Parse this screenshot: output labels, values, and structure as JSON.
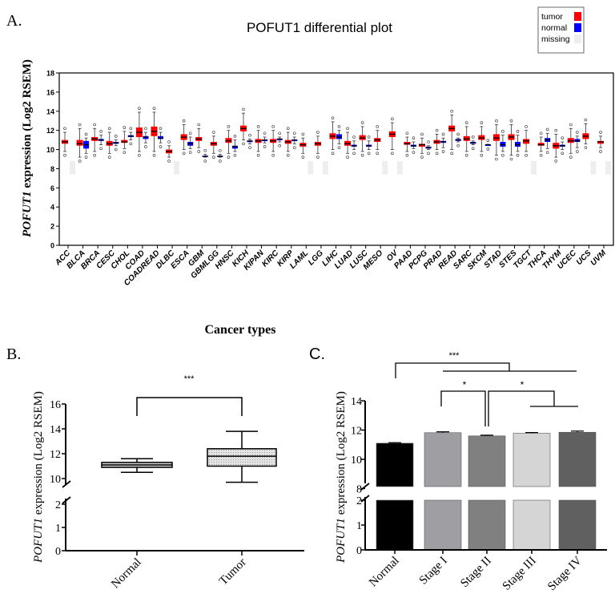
{
  "panel_labels": {
    "a": "A.",
    "b": "B.",
    "c": "C."
  },
  "chart_data": [
    {
      "type": "box",
      "panel": "A",
      "title": "POFUT1 differential plot",
      "xlabel": "Cancer types",
      "ylabel_gene": "POFUT1",
      "ylabel_rest": " expression (Log2 RSEM)",
      "ylim": [
        0,
        18
      ],
      "yticks": [
        0,
        2,
        4,
        6,
        8,
        10,
        12,
        14,
        16,
        18
      ],
      "legend": {
        "position": "top-right",
        "entries": [
          {
            "name": "tumor",
            "color": "#ff0000"
          },
          {
            "name": "normal",
            "color": "#0000ff"
          },
          {
            "name": "missing",
            "color": "#eeeeee"
          }
        ]
      },
      "box_format": [
        "min",
        "q1",
        "median",
        "q3",
        "max"
      ],
      "categories": [
        {
          "name": "ACC",
          "tumor": [
            9.8,
            10.6,
            10.8,
            11.0,
            11.8
          ],
          "normal": null
        },
        {
          "name": "BLCA",
          "tumor": [
            9.2,
            10.4,
            10.6,
            11.0,
            12.2
          ],
          "normal": [
            9.6,
            10.1,
            10.5,
            10.9,
            11.2
          ]
        },
        {
          "name": "BRCA",
          "tumor": [
            9.8,
            10.9,
            11.1,
            11.3,
            12.2
          ],
          "normal": [
            10.5,
            10.9,
            11.0,
            11.1,
            11.5
          ]
        },
        {
          "name": "CESC",
          "tumor": [
            9.6,
            10.4,
            10.6,
            10.9,
            11.8
          ],
          "normal": [
            10.4,
            10.6,
            10.7,
            10.8,
            11.0
          ]
        },
        {
          "name": "CHOL",
          "tumor": [
            10.1,
            10.7,
            10.8,
            11.0,
            11.9
          ],
          "normal": [
            11.0,
            11.3,
            11.4,
            11.5,
            11.8
          ]
        },
        {
          "name": "COAD",
          "tumor": [
            9.8,
            11.3,
            11.8,
            12.3,
            13.9
          ],
          "normal": [
            10.7,
            11.1,
            11.3,
            11.4,
            11.8
          ]
        },
        {
          "name": "COADREAD",
          "tumor": [
            9.8,
            11.4,
            11.9,
            12.4,
            13.9
          ],
          "normal": [
            10.7,
            11.1,
            11.2,
            11.4,
            11.8
          ]
        },
        {
          "name": "DLBC",
          "tumor": [
            9.2,
            9.6,
            9.8,
            10.0,
            10.4
          ],
          "normal": null
        },
        {
          "name": "ESCA",
          "tumor": [
            10.0,
            11.0,
            11.3,
            11.6,
            12.6
          ],
          "normal": [
            10.1,
            10.4,
            10.6,
            10.8,
            11.3
          ]
        },
        {
          "name": "GBM",
          "tumor": [
            10.2,
            10.9,
            11.1,
            11.3,
            12.2
          ],
          "normal": [
            9.2,
            9.3,
            9.3,
            9.35,
            9.5
          ]
        },
        {
          "name": "GBMLGG",
          "tumor": [
            9.6,
            10.4,
            10.6,
            10.8,
            11.4
          ],
          "normal": [
            9.2,
            9.3,
            9.3,
            9.35,
            9.5
          ]
        },
        {
          "name": "HNSC",
          "tumor": [
            9.6,
            10.7,
            10.9,
            11.2,
            12.0
          ],
          "normal": [
            9.8,
            10.1,
            10.3,
            10.4,
            11.0
          ]
        },
        {
          "name": "KICH",
          "tumor": [
            11.0,
            11.9,
            12.2,
            12.5,
            13.8
          ],
          "normal": [
            10.6,
            10.8,
            10.9,
            10.9,
            11.1
          ]
        },
        {
          "name": "KIPAN",
          "tumor": [
            9.8,
            10.7,
            10.9,
            11.1,
            12.0
          ],
          "normal": [
            10.7,
            10.9,
            11.0,
            11.0,
            11.3
          ]
        },
        {
          "name": "KIRC",
          "tumor": [
            9.8,
            10.7,
            10.9,
            11.1,
            12.0
          ],
          "normal": [
            10.8,
            11.0,
            11.1,
            11.1,
            11.3
          ]
        },
        {
          "name": "KIRP",
          "tumor": [
            9.8,
            10.6,
            10.8,
            11.0,
            11.8
          ],
          "normal": [
            10.6,
            10.9,
            11.0,
            11.0,
            11.3
          ]
        },
        {
          "name": "LAML",
          "tumor": [
            9.6,
            10.3,
            10.5,
            10.7,
            11.2
          ],
          "normal": null
        },
        {
          "name": "LGG",
          "tumor": [
            9.6,
            10.4,
            10.6,
            10.8,
            11.4
          ],
          "normal": null
        },
        {
          "name": "LIHC",
          "tumor": [
            10.0,
            11.1,
            11.4,
            11.7,
            12.9
          ],
          "normal": [
            10.6,
            11.1,
            11.3,
            11.6,
            12.0
          ]
        },
        {
          "name": "LUAD",
          "tumor": [
            9.6,
            10.4,
            10.6,
            10.9,
            11.8
          ],
          "normal": [
            10.0,
            10.3,
            10.4,
            10.5,
            10.9
          ]
        },
        {
          "name": "LUSC",
          "tumor": [
            9.8,
            11.0,
            11.2,
            11.5,
            12.4
          ],
          "normal": [
            10.0,
            10.3,
            10.4,
            10.5,
            10.9
          ]
        },
        {
          "name": "MESO",
          "tumor": [
            10.0,
            10.8,
            11.0,
            11.2,
            12.0
          ],
          "normal": null
        },
        {
          "name": "OV",
          "tumor": [
            10.0,
            11.3,
            11.6,
            11.9,
            12.8
          ],
          "normal": null
        },
        {
          "name": "PAAD",
          "tumor": [
            9.8,
            10.5,
            10.6,
            10.8,
            11.3
          ],
          "normal": [
            10.1,
            10.3,
            10.4,
            10.5,
            10.8
          ]
        },
        {
          "name": "PCPG",
          "tumor": [
            9.6,
            10.3,
            10.5,
            10.6,
            11.2
          ],
          "normal": [
            10.0,
            10.1,
            10.2,
            10.3,
            10.4
          ]
        },
        {
          "name": "PRAD",
          "tumor": [
            10.0,
            10.6,
            10.8,
            11.0,
            11.6
          ],
          "normal": [
            10.2,
            10.7,
            10.8,
            10.9,
            11.2
          ]
        },
        {
          "name": "READ",
          "tumor": [
            10.0,
            11.9,
            12.2,
            12.5,
            13.6
          ],
          "normal": [
            10.8,
            10.9,
            11.0,
            11.1,
            11.2
          ]
        },
        {
          "name": "SARC",
          "tumor": [
            9.8,
            10.9,
            11.1,
            11.4,
            12.4
          ],
          "normal": [
            10.5,
            10.6,
            10.7,
            10.8,
            10.9
          ]
        },
        {
          "name": "SKCM",
          "tumor": [
            9.8,
            11.0,
            11.2,
            11.5,
            12.4
          ],
          "normal": [
            10.45,
            10.5,
            10.5,
            10.5,
            10.55
          ]
        },
        {
          "name": "STAD",
          "tumor": [
            9.4,
            10.9,
            11.2,
            11.6,
            12.6
          ],
          "normal": [
            9.8,
            10.3,
            10.5,
            10.8,
            11.5
          ]
        },
        {
          "name": "STES",
          "tumor": [
            9.4,
            11.0,
            11.3,
            11.6,
            12.6
          ],
          "normal": [
            9.8,
            10.3,
            10.5,
            10.8,
            11.5
          ]
        },
        {
          "name": "TGCT",
          "tumor": [
            9.8,
            10.6,
            10.9,
            11.1,
            12.0
          ],
          "normal": null
        },
        {
          "name": "THCA",
          "tumor": [
            9.8,
            10.4,
            10.5,
            10.7,
            11.3
          ],
          "normal": [
            10.1,
            10.8,
            11.0,
            11.2,
            11.7
          ]
        },
        {
          "name": "THYM",
          "tumor": [
            9.2,
            10.1,
            10.4,
            10.7,
            11.6
          ],
          "normal": [
            10.0,
            10.3,
            10.4,
            10.5,
            10.8
          ]
        },
        {
          "name": "UCEC",
          "tumor": [
            9.6,
            10.7,
            10.9,
            11.2,
            12.2
          ],
          "normal": [
            10.2,
            10.8,
            10.9,
            11.1,
            11.4
          ]
        },
        {
          "name": "UCS",
          "tumor": [
            10.6,
            11.1,
            11.4,
            11.7,
            12.7
          ],
          "normal": null
        },
        {
          "name": "UVM",
          "tumor": [
            10.2,
            10.6,
            10.8,
            10.9,
            11.4
          ],
          "normal": null
        }
      ]
    },
    {
      "type": "box",
      "panel": "B",
      "ylabel_gene": "POFUT1",
      "ylabel_rest": " expression (Log2 RSEM)",
      "y_broken": true,
      "ylim_lower": [
        0,
        2
      ],
      "ylim_upper": [
        10,
        16
      ],
      "yticks_lower": [
        0,
        1,
        2
      ],
      "yticks_upper": [
        10,
        12,
        14,
        16
      ],
      "categories": [
        "Normal",
        "Tumor"
      ],
      "boxes": [
        [
          10.5,
          10.9,
          11.1,
          11.3,
          11.6
        ],
        [
          9.7,
          11.0,
          11.8,
          12.4,
          13.8
        ]
      ],
      "significance": "***"
    },
    {
      "type": "bar",
      "panel": "C",
      "ylabel_gene": "POFUT1",
      "ylabel_rest": " expression (Log2 RSEM)",
      "y_broken": true,
      "ylim_lower": [
        0,
        2
      ],
      "ylim_upper": [
        8,
        14
      ],
      "yticks_lower": [
        0,
        1,
        2
      ],
      "yticks_upper": [
        8,
        10,
        12,
        14
      ],
      "categories": [
        "Normal",
        "Stage I",
        "Stage II",
        "Stage III",
        "Stage IV"
      ],
      "values": [
        11.1,
        11.82,
        11.6,
        11.78,
        11.85
      ],
      "errors": [
        0.04,
        0.06,
        0.05,
        0.05,
        0.08
      ],
      "colors": [
        "#000000",
        "#9f9fa3",
        "#808080",
        "#d5d5d5",
        "#606060"
      ],
      "significance": [
        {
          "label": "***",
          "from": "Normal",
          "to": "Stage I–Stage IV"
        },
        {
          "label": "*",
          "from": "Stage I",
          "to": "Stage II"
        },
        {
          "label": "*",
          "from": "Stage II",
          "to": "Stage III–Stage IV"
        }
      ]
    }
  ]
}
